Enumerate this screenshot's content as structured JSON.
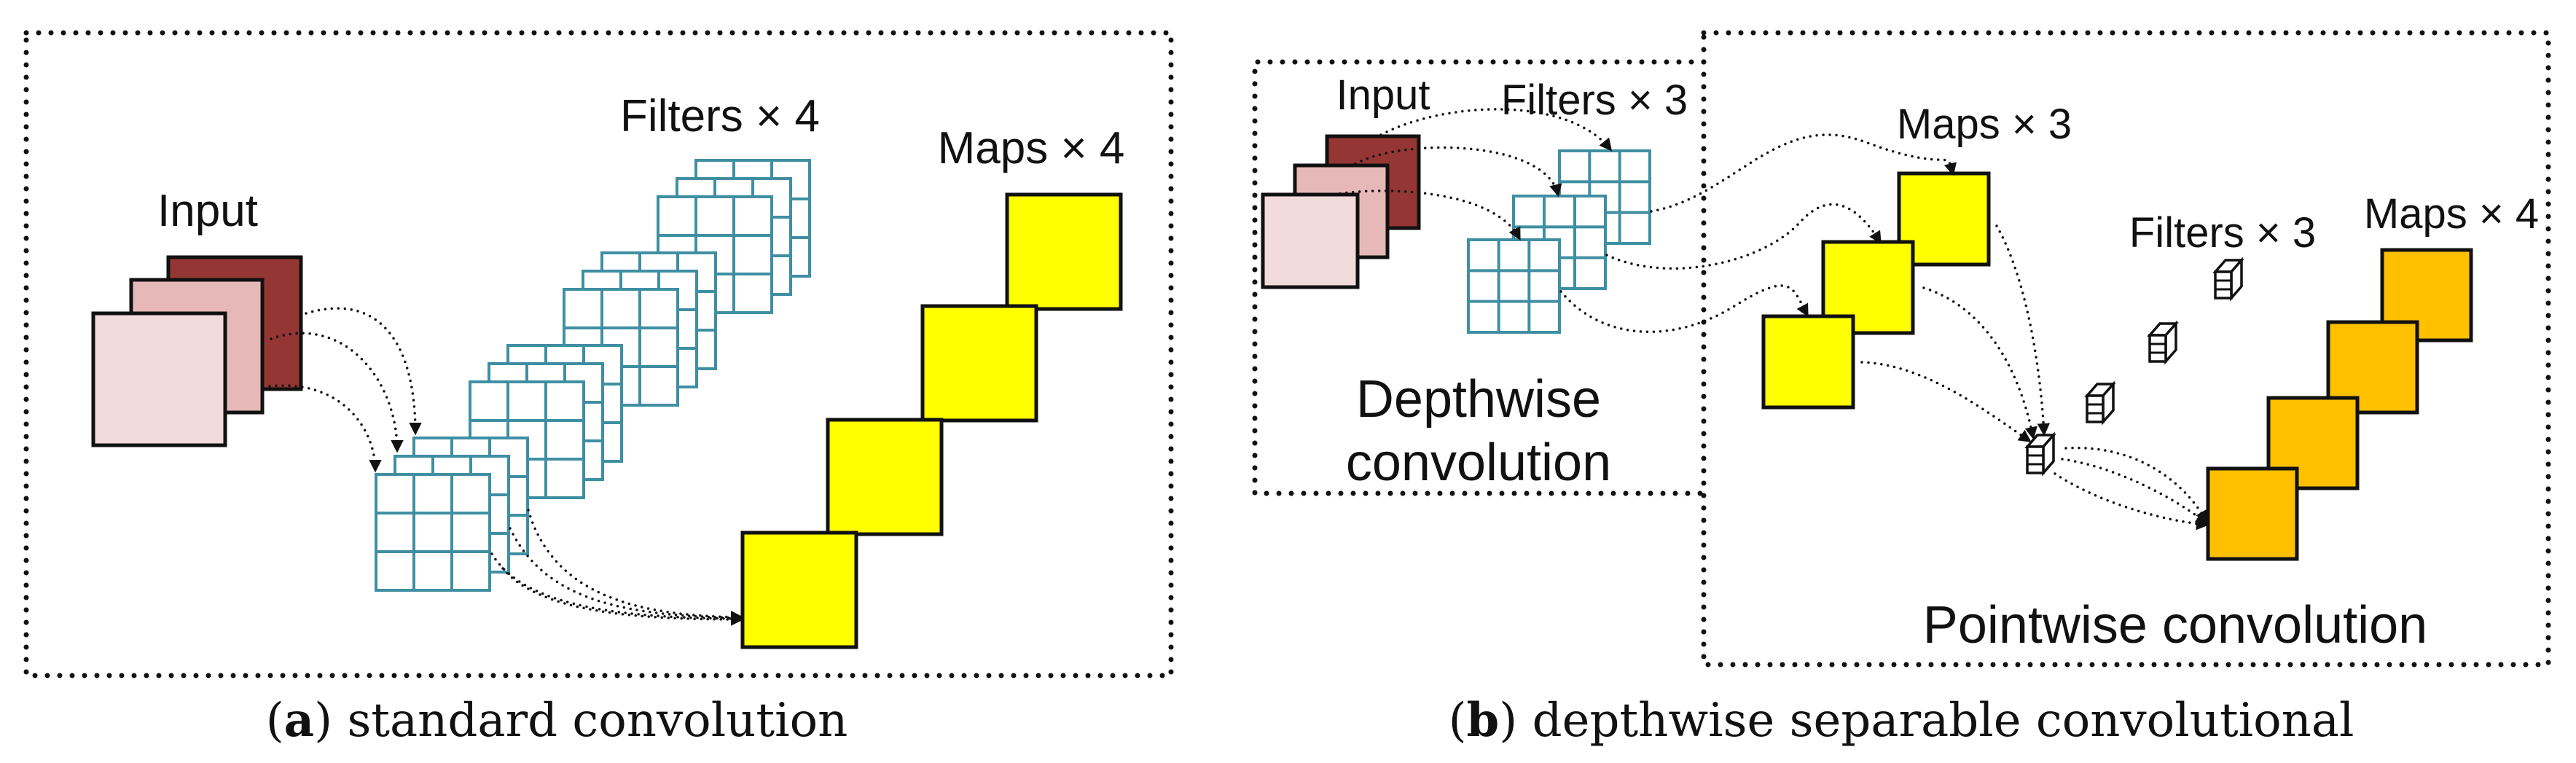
{
  "panel_a": {
    "input_label": "Input",
    "filters_label": "Filters × 4",
    "maps_label": "Maps × 4",
    "caption_letter": "a",
    "caption_text": " standard convolution"
  },
  "panel_b": {
    "input_label": "Input",
    "filters_label": "Filters × 3",
    "maps3_label": "Maps × 3",
    "depthwise_line1": "Depthwise",
    "depthwise_line2": "convolution",
    "pw_filters_label": "Filters × 3",
    "maps4_label": "Maps × 4",
    "pointwise_label": "Pointwise convolution",
    "caption_letter": "b",
    "caption_text": " depthwise separable convolutional"
  },
  "colors": {
    "input_dark": "#943634",
    "input_mid": "#E6B9B8",
    "input_light": "#F2DCDB",
    "filter_grid": "#3F8FA3",
    "maps_yellow": "#FFFF00",
    "maps_orange": "#FFC000"
  }
}
